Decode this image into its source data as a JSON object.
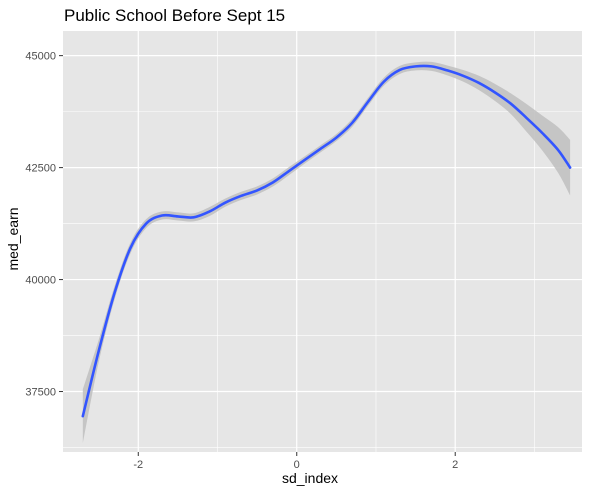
{
  "chart_data": {
    "type": "line",
    "title": "Public School Before Sept 15",
    "xlabel": "sd_index",
    "ylabel": "med_earn",
    "xlim": [
      -2.95,
      3.6
    ],
    "ylim": [
      36150,
      45550
    ],
    "xticks": [
      -2,
      0,
      2
    ],
    "xtick_labels": [
      "-2",
      "0",
      "2"
    ],
    "yticks": [
      37500,
      40000,
      42500,
      45000
    ],
    "ytick_labels": [
      "37500",
      "40000",
      "42500",
      "45000"
    ],
    "grid": true,
    "legend": "none",
    "colors": {
      "panel": "#E6E6E6",
      "grid": "#FFFFFF",
      "line": "#3355FF",
      "ribbon": "#BEBEBE"
    },
    "series": [
      {
        "x": [
          -2.7,
          -2.5,
          -2.3,
          -2.1,
          -1.9,
          -1.7,
          -1.5,
          -1.3,
          -1.1,
          -0.9,
          -0.7,
          -0.5,
          -0.3,
          -0.1,
          0.1,
          0.3,
          0.5,
          0.7,
          0.9,
          1.1,
          1.3,
          1.5,
          1.7,
          1.9,
          2.1,
          2.3,
          2.5,
          2.7,
          2.9,
          3.1,
          3.3,
          3.45
        ],
        "y": [
          36950,
          38400,
          39700,
          40700,
          41250,
          41430,
          41410,
          41390,
          41520,
          41720,
          41870,
          41990,
          42170,
          42420,
          42670,
          42920,
          43170,
          43500,
          43970,
          44420,
          44680,
          44760,
          44760,
          44670,
          44550,
          44390,
          44180,
          43930,
          43610,
          43270,
          42890,
          42500
        ],
        "lower": [
          36350,
          38150,
          39550,
          40580,
          41150,
          41340,
          41320,
          41300,
          41420,
          41630,
          41780,
          41900,
          42080,
          42330,
          42590,
          42840,
          43090,
          43410,
          43880,
          44330,
          44590,
          44670,
          44660,
          44560,
          44420,
          44230,
          43990,
          43700,
          43300,
          42880,
          42380,
          41880
        ],
        "upper": [
          37550,
          38650,
          39850,
          40820,
          41350,
          41520,
          41500,
          41480,
          41620,
          41810,
          41960,
          42080,
          42260,
          42510,
          42750,
          43000,
          43250,
          43590,
          44060,
          44510,
          44770,
          44850,
          44860,
          44780,
          44680,
          44550,
          44370,
          44160,
          43920,
          43660,
          43400,
          43120
        ]
      }
    ]
  }
}
